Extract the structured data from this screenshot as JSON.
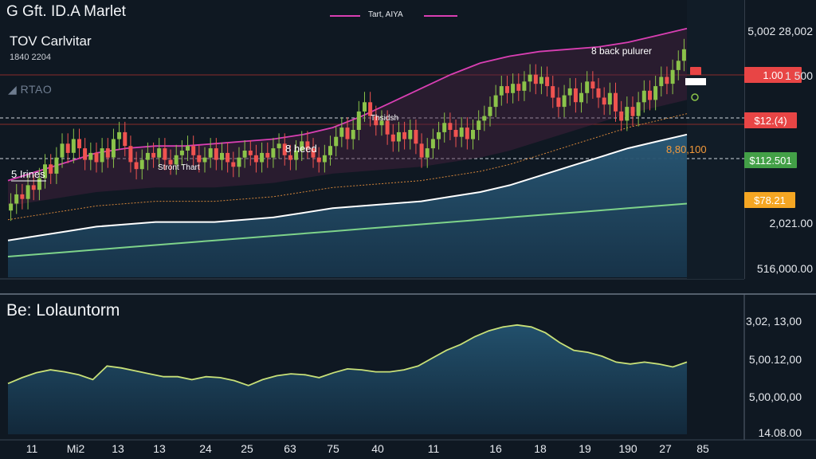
{
  "header": {
    "title": "G Gft. ID.A Marlet",
    "subtitle": "TOV Carlvitar",
    "note": "1840 2204",
    "brand": "RTAO",
    "legend_label": "Tart, AIYA"
  },
  "colors": {
    "background": "#0f1822",
    "up_candle": "#8bc34a",
    "down_candle": "#ef5350",
    "band_upper": "#d93fb3",
    "white_ma": "#ffffff",
    "green_ma": "#7ed38a",
    "orange_ma": "#d4853a",
    "area_fill": "#1f4660",
    "osc_line": "#c8e078"
  },
  "chart_data": [
    {
      "type": "line",
      "panel": "price",
      "title": "TOV Carlvitar",
      "x_tick_labels": [
        "11",
        "Mi2",
        "13",
        "13",
        "24",
        "25",
        "63",
        "75",
        "40",
        "11",
        "16",
        "18",
        "19",
        "190",
        "27",
        "85"
      ],
      "y_tick_labels": [
        "5,002 28,002",
        "1 500",
        "2,021.00",
        "516,000.00"
      ],
      "price_tags": [
        {
          "label": "1.00",
          "color": "#e84545"
        },
        {
          "label": "$12.(4)",
          "color": "#e84545"
        },
        {
          "label": "$112.501",
          "color": "#43a047"
        },
        {
          "label": "$78.21",
          "color": "#f5a623"
        }
      ],
      "annotations": [
        "8 back pulurer",
        "Thsidsh",
        "8 heed",
        "Stront Thart",
        "5 Irines",
        "8,80,100"
      ],
      "candles_close": [
        3.2,
        3.6,
        3.4,
        4.0,
        3.8,
        4.3,
        4.9,
        4.5,
        5.2,
        5.8,
        5.4,
        6.0,
        5.6,
        5.1,
        5.4,
        5.0,
        5.6,
        5.2,
        6.0,
        6.3,
        5.7,
        5.0,
        4.7,
        5.1,
        5.4,
        5.2,
        5.6,
        5.1,
        4.9,
        5.3,
        5.5,
        5.7,
        5.3,
        5.0,
        5.2,
        5.6,
        5.1,
        5.4,
        5.0,
        4.8,
        5.2,
        5.5,
        5.3,
        5.0,
        5.4,
        5.2,
        5.6,
        5.8,
        5.3,
        5.1,
        5.5,
        5.9,
        5.6,
        5.2,
        5.0,
        5.3,
        5.7,
        6.1,
        6.5,
        6.0,
        6.4,
        7.2,
        7.6,
        7.0,
        6.6,
        6.8,
        6.2,
        5.9,
        6.3,
        6.0,
        6.4,
        5.8,
        5.2,
        5.6,
        6.0,
        6.3,
        6.7,
        6.4,
        6.1,
        6.5,
        6.0,
        6.4,
        6.8,
        7.0,
        7.4,
        7.9,
        8.3,
        8.0,
        8.4,
        8.1,
        8.5,
        8.8,
        8.4,
        8.7,
        8.3,
        7.8,
        7.4,
        7.9,
        8.2,
        7.6,
        8.0,
        8.5,
        8.2,
        7.8,
        7.5,
        8.0,
        7.2,
        6.8,
        7.4,
        7.0,
        7.6,
        8.1,
        7.7,
        8.3,
        8.7,
        8.4,
        9.0,
        9.4,
        9.9
      ],
      "series": [
        {
          "name": "upper band",
          "values": [
            4.2,
            4.6,
            5.0,
            5.4,
            5.6,
            5.7,
            5.7,
            5.8,
            5.9,
            6.0,
            6.2,
            6.5,
            7.0,
            7.6,
            8.2,
            8.8,
            9.3,
            9.6,
            9.8,
            9.9,
            10.0,
            10.2,
            10.5,
            10.8
          ]
        },
        {
          "name": "white MA",
          "values": [
            1.6,
            1.8,
            2.0,
            2.2,
            2.3,
            2.4,
            2.4,
            2.4,
            2.5,
            2.6,
            2.8,
            3.0,
            3.1,
            3.2,
            3.3,
            3.5,
            3.7,
            4.0,
            4.4,
            4.8,
            5.2,
            5.6,
            5.9,
            6.2
          ]
        },
        {
          "name": "green MA",
          "values": [
            0.9,
            1.0,
            1.1,
            1.2,
            1.3,
            1.4,
            1.5,
            1.6,
            1.7,
            1.8,
            1.9,
            2.0,
            2.1,
            2.2,
            2.3,
            2.4,
            2.5,
            2.6,
            2.7,
            2.8,
            2.9,
            3.0,
            3.1,
            3.2
          ]
        }
      ]
    },
    {
      "type": "area",
      "panel": "indicator",
      "title": "Be: Lolauntorm",
      "y_tick_labels": [
        "3,02, 13,00",
        "5,00.12,00",
        "5,00,00,00",
        "14.08.00"
      ],
      "values": [
        5.2,
        5.8,
        6.3,
        6.6,
        6.4,
        6.1,
        5.6,
        7.0,
        6.8,
        6.5,
        6.2,
        5.9,
        5.9,
        5.6,
        5.9,
        5.8,
        5.5,
        5.0,
        5.6,
        6.0,
        6.2,
        6.1,
        5.8,
        6.3,
        6.7,
        6.6,
        6.4,
        6.4,
        6.6,
        7.0,
        7.8,
        8.6,
        9.2,
        10.0,
        10.6,
        11.0,
        11.2,
        11.0,
        10.4,
        9.4,
        8.6,
        8.4,
        8.0,
        7.4,
        7.2,
        7.4,
        7.2,
        6.9,
        7.4
      ]
    }
  ]
}
